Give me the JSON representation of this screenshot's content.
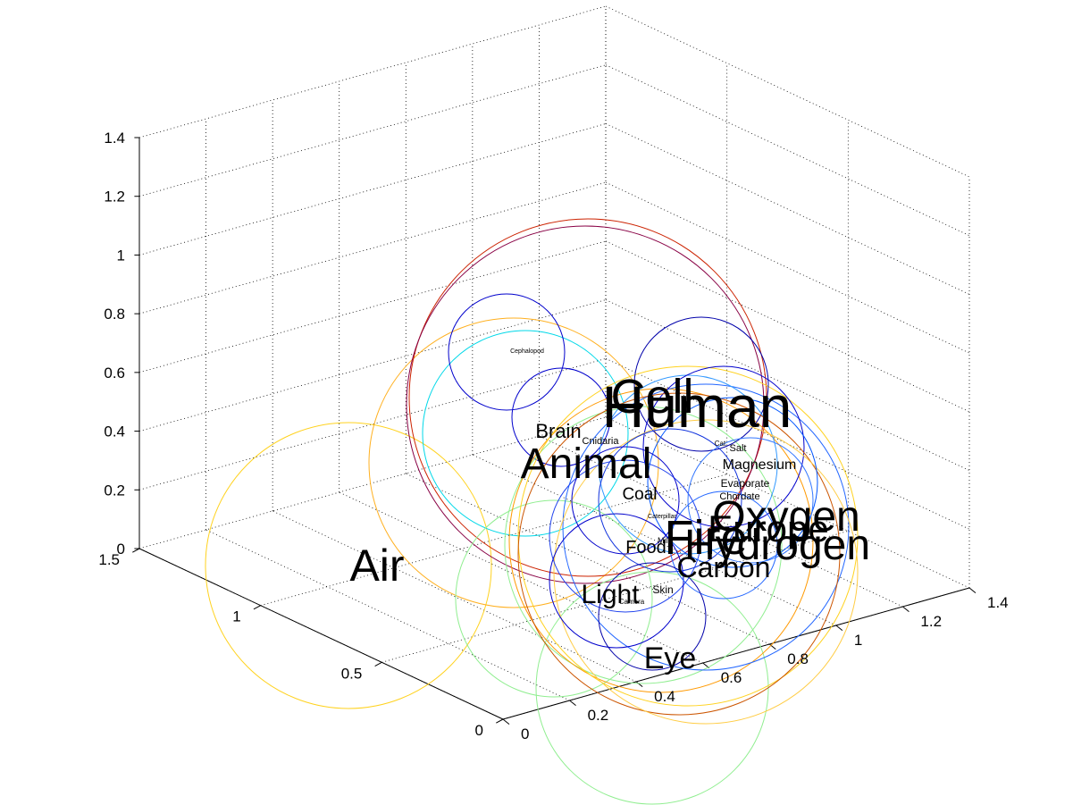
{
  "chart_data": {
    "type": "scatter",
    "projection": "3d",
    "grid": true,
    "axes": {
      "x": {
        "range": [
          0,
          1.4
        ],
        "ticks": [
          "0",
          "0.2",
          "0.4",
          "0.6",
          "0.8",
          "1",
          "1.2",
          "1.4"
        ]
      },
      "y": {
        "range": [
          0,
          1.5
        ],
        "ticks": [
          "0",
          "0.5",
          "1",
          "1.5"
        ]
      },
      "z": {
        "range": [
          0,
          1.4
        ],
        "ticks": [
          "0",
          "0.2",
          "0.4",
          "0.6",
          "0.8",
          "1",
          "1.2",
          "1.4"
        ]
      }
    },
    "bubbles": [
      {
        "color": "#ffd21f"
      },
      {
        "color": "#ffb020"
      },
      {
        "color": "#00d8e8"
      },
      {
        "color": "#cc2200"
      },
      {
        "color": "#880044"
      },
      {
        "color": "#0000cc"
      },
      {
        "color": "#0000cc"
      },
      {
        "color": "#90ee90"
      },
      {
        "color": "#90ee90"
      },
      {
        "color": "#90ee90"
      },
      {
        "color": "#ff9900"
      },
      {
        "color": "#ffd21f"
      },
      {
        "color": "#2266ff"
      },
      {
        "color": "#0000aa"
      },
      {
        "color": "#3399ff"
      },
      {
        "color": "#0000cc"
      },
      {
        "color": "#cc5500"
      },
      {
        "color": "#ffcc44"
      },
      {
        "color": "#2244ee"
      },
      {
        "color": "#0055ff"
      },
      {
        "color": "#0000cc"
      },
      {
        "color": "#1133dd"
      },
      {
        "color": "#3377ff"
      },
      {
        "color": "#0000cc"
      },
      {
        "color": "#2266ff"
      },
      {
        "color": "#0000aa"
      }
    ],
    "labels": [
      {
        "text": "Air"
      },
      {
        "text": "Human"
      },
      {
        "text": "Cell"
      },
      {
        "text": "Animal"
      },
      {
        "text": "Brain"
      },
      {
        "text": "Cnidaria"
      },
      {
        "text": "Cephalopod"
      },
      {
        "text": "Oxygen"
      },
      {
        "text": "Hydrogen"
      },
      {
        "text": "Europe"
      },
      {
        "text": "Fire"
      },
      {
        "text": "Carbon"
      },
      {
        "text": "Light"
      },
      {
        "text": "Eye"
      },
      {
        "text": "Coal"
      },
      {
        "text": "Magnesium"
      },
      {
        "text": "Evaporate"
      },
      {
        "text": "Chordate"
      },
      {
        "text": "Skin"
      },
      {
        "text": "Food"
      },
      {
        "text": "Milk"
      },
      {
        "text": "Salt"
      },
      {
        "text": "Cat"
      },
      {
        "text": "Camera"
      },
      {
        "text": "Caterpillar"
      }
    ]
  }
}
